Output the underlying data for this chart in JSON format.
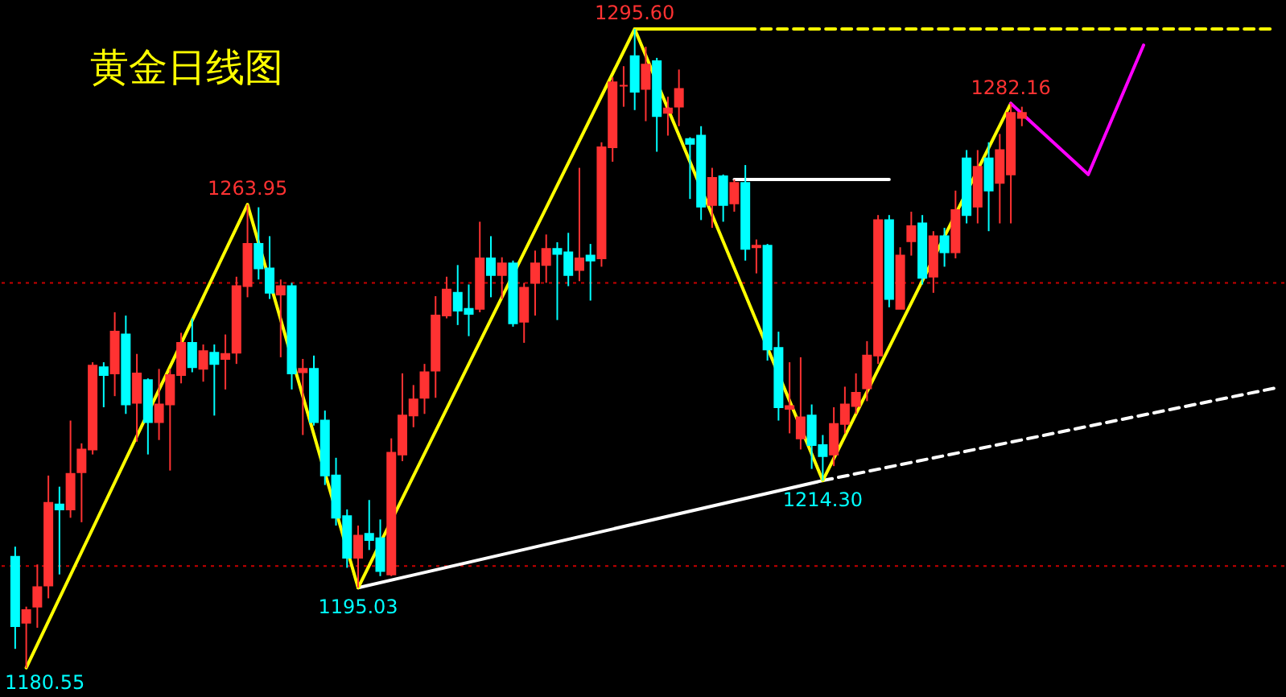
{
  "chart_data": {
    "type": "candlestick",
    "title": "黄金日线图",
    "tick_labels": false,
    "categories": [
      null,
      null,
      null,
      null,
      null,
      null,
      null,
      null,
      null,
      null,
      null,
      null,
      null,
      null,
      null,
      null,
      null,
      null,
      null,
      null,
      null,
      null,
      null,
      null,
      null,
      null,
      null,
      null,
      null,
      null,
      null,
      null,
      null,
      null,
      null,
      null,
      null,
      null,
      null,
      null,
      null,
      null,
      null,
      null,
      null,
      null,
      null,
      null,
      null,
      null,
      null,
      null,
      null,
      null,
      null,
      null,
      null,
      null,
      null,
      null,
      null,
      null,
      null,
      null,
      null,
      null,
      null,
      null,
      null,
      null,
      null,
      null,
      null,
      null,
      null,
      null,
      null,
      null,
      null,
      null,
      null,
      null,
      null,
      null,
      null,
      null,
      null,
      null,
      null,
      null,
      null,
      null,
      null,
      null,
      null,
      null,
      null,
      null,
      null,
      null,
      null,
      null,
      null,
      null,
      null,
      null,
      null,
      null,
      null,
      null,
      null,
      null,
      null,
      null,
      null
    ],
    "ohlc": [
      [
        1200.6,
        1202.4,
        1184.0,
        1188.1
      ],
      [
        1188.7,
        1191.6,
        1180.55,
        1191.0
      ],
      [
        1191.6,
        1199.2,
        1187.8,
        1195.1
      ],
      [
        1195.4,
        1215.2,
        1193.1,
        1210.3
      ],
      [
        1210.0,
        1213.2,
        1197.4,
        1209.1
      ],
      [
        1209.1,
        1225.1,
        1207.6,
        1215.5
      ],
      [
        1215.8,
        1221.0,
        1206.8,
        1219.9
      ],
      [
        1219.9,
        1235.6,
        1219.0,
        1235.0
      ],
      [
        1234.7,
        1235.6,
        1227.5,
        1233.3
      ],
      [
        1233.6,
        1244.6,
        1229.5,
        1241.1
      ],
      [
        1240.6,
        1244.0,
        1226.3,
        1228.0
      ],
      [
        1228.3,
        1237.1,
        1221.3,
        1233.6
      ],
      [
        1232.4,
        1232.7,
        1219.0,
        1224.8
      ],
      [
        1224.8,
        1234.4,
        1221.6,
        1228.0
      ],
      [
        1228.0,
        1234.4,
        1216.1,
        1233.3
      ],
      [
        1233.3,
        1240.9,
        1231.8,
        1239.1
      ],
      [
        1239.1,
        1243.5,
        1233.8,
        1234.7
      ],
      [
        1234.4,
        1238.8,
        1232.1,
        1237.6
      ],
      [
        1237.3,
        1238.8,
        1226.0,
        1235.3
      ],
      [
        1236.2,
        1240.6,
        1230.7,
        1237.1
      ],
      [
        1237.3,
        1251.0,
        1235.3,
        1249.3
      ],
      [
        1249.3,
        1263.95,
        1247.3,
        1256.9
      ],
      [
        1256.9,
        1263.5,
        1250.5,
        1252.5
      ],
      [
        1252.5,
        1258.3,
        1247.0,
        1248.1
      ],
      [
        1247.8,
        1250.5,
        1236.5,
        1249.3
      ],
      [
        1249.3,
        1249.9,
        1230.7,
        1233.6
      ],
      [
        1233.8,
        1236.2,
        1222.5,
        1234.4
      ],
      [
        1234.4,
        1236.8,
        1224.2,
        1224.8
      ],
      [
        1225.1,
        1226.9,
        1213.5,
        1215.2
      ],
      [
        1215.2,
        1218.4,
        1206.2,
        1207.6
      ],
      [
        1207.9,
        1209.1,
        1198.6,
        1200.4
      ],
      [
        1200.4,
        1206.2,
        1195.03,
        1204.4
      ],
      [
        1204.7,
        1210.8,
        1201.8,
        1203.6
      ],
      [
        1203.9,
        1207.3,
        1197.1,
        1198.0
      ],
      [
        1197.4,
        1221.9,
        1197.1,
        1219.3
      ],
      [
        1219.0,
        1233.6,
        1217.8,
        1226.0
      ],
      [
        1226.0,
        1231.5,
        1223.9,
        1228.9
      ],
      [
        1229.2,
        1235.3,
        1226.3,
        1233.8
      ],
      [
        1234.1,
        1247.5,
        1229.2,
        1244.0
      ],
      [
        1244.0,
        1251.0,
        1243.5,
        1248.7
      ],
      [
        1248.1,
        1253.1,
        1242.3,
        1244.9
      ],
      [
        1245.2,
        1249.6,
        1240.3,
        1244.3
      ],
      [
        1245.2,
        1260.9,
        1244.6,
        1254.3
      ],
      [
        1254.3,
        1258.3,
        1247.3,
        1251.3
      ],
      [
        1251.3,
        1254.5,
        1247.0,
        1253.4
      ],
      [
        1253.4,
        1253.9,
        1242.0,
        1242.6
      ],
      [
        1242.9,
        1249.9,
        1239.1,
        1249.0
      ],
      [
        1249.9,
        1255.7,
        1244.0,
        1253.4
      ],
      [
        1253.1,
        1258.6,
        1249.9,
        1256.0
      ],
      [
        1256.0,
        1257.2,
        1243.2,
        1255.1
      ],
      [
        1255.4,
        1258.9,
        1249.3,
        1251.3
      ],
      [
        1252.2,
        1270.6,
        1250.2,
        1254.3
      ],
      [
        1254.8,
        1256.9,
        1246.7,
        1253.9
      ],
      [
        1254.3,
        1275.2,
        1252.8,
        1274.3
      ],
      [
        1274.3,
        1286.9,
        1271.7,
        1286.0
      ],
      [
        1285.4,
        1288.9,
        1281.6,
        1285.4
      ],
      [
        1290.7,
        1295.6,
        1281.0,
        1284.3
      ],
      [
        1284.8,
        1292.4,
        1279.0,
        1289.2
      ],
      [
        1289.8,
        1290.4,
        1273.5,
        1279.9
      ],
      [
        1280.5,
        1283.4,
        1276.4,
        1281.3
      ],
      [
        1281.6,
        1288.3,
        1278.1,
        1284.8
      ],
      [
        1275.8,
        1276.1,
        1265.0,
        1274.9
      ],
      [
        1276.4,
        1278.1,
        1261.2,
        1263.6
      ],
      [
        1263.9,
        1270.6,
        1259.8,
        1268.8
      ],
      [
        1269.1,
        1269.4,
        1260.9,
        1263.9
      ],
      [
        1264.2,
        1268.5,
        1262.7,
        1267.9
      ],
      [
        1267.9,
        1271.1,
        1253.9,
        1256.0
      ],
      [
        1256.3,
        1257.7,
        1251.6,
        1256.6
      ],
      [
        1256.6,
        1256.9,
        1235.9,
        1237.9
      ],
      [
        1238.2,
        1241.1,
        1225.1,
        1227.5
      ],
      [
        1227.2,
        1235.6,
        1222.8,
        1227.7
      ],
      [
        1221.9,
        1236.5,
        1219.9,
        1225.7
      ],
      [
        1226.0,
        1228.0,
        1216.4,
        1220.7
      ],
      [
        1220.7,
        1222.5,
        1214.3,
        1218.7
      ],
      [
        1219.0,
        1227.5,
        1216.9,
        1224.5
      ],
      [
        1224.5,
        1231.2,
        1222.8,
        1228.0
      ],
      [
        1227.7,
        1233.6,
        1226.3,
        1230.1
      ],
      [
        1230.9,
        1239.4,
        1228.6,
        1236.8
      ],
      [
        1236.8,
        1262.1,
        1235.3,
        1261.2
      ],
      [
        1261.2,
        1262.1,
        1245.5,
        1247.0
      ],
      [
        1245.2,
        1256.3,
        1245.2,
        1254.8
      ],
      [
        1257.4,
        1262.7,
        1254.8,
        1260.1
      ],
      [
        1260.6,
        1262.1,
        1249.6,
        1250.8
      ],
      [
        1251.0,
        1259.2,
        1248.1,
        1258.3
      ],
      [
        1258.3,
        1259.8,
        1252.8,
        1255.4
      ],
      [
        1255.4,
        1266.5,
        1254.3,
        1263.0
      ],
      [
        1272.3,
        1273.8,
        1260.6,
        1262.1
      ],
      [
        1263.6,
        1273.8,
        1260.6,
        1270.8
      ],
      [
        1272.3,
        1275.2,
        1259.2,
        1266.5
      ],
      [
        1267.9,
        1276.7,
        1260.6,
        1273.8
      ],
      [
        1269.4,
        1282.16,
        1260.6,
        1280.5
      ],
      [
        1279.6,
        1281.6,
        1278.1,
        1280.5
      ],
      null,
      null,
      null,
      null,
      null,
      null,
      null,
      null,
      null,
      null,
      null,
      null,
      null,
      null,
      null,
      null,
      null,
      null,
      null,
      null,
      null,
      null,
      null
    ],
    "colors": [
      "#00ffff",
      "#ff3232",
      "#ff3232",
      "#ff3232",
      "#00ffff",
      "#ff3232",
      "#ff3232",
      "#ff3232",
      "#00ffff",
      "#ff3232",
      "#00ffff",
      "#ff3232",
      "#00ffff",
      "#ff3232",
      "#ff3232",
      "#ff3232",
      "#00ffff",
      "#ff3232",
      "#00ffff",
      "#ff3232",
      "#ff3232",
      "#ff3232",
      "#00ffff",
      "#00ffff",
      "#ff3232",
      "#00ffff",
      "#ff3232",
      "#00ffff",
      "#00ffff",
      "#00ffff",
      "#00ffff",
      "#ff3232",
      "#00ffff",
      "#00ffff",
      "#ff3232",
      "#ff3232",
      "#ff3232",
      "#ff3232",
      "#ff3232",
      "#ff3232",
      "#00ffff",
      "#00ffff",
      "#ff3232",
      "#00ffff",
      "#ff3232",
      "#00ffff",
      "#ff3232",
      "#ff3232",
      "#ff3232",
      "#00ffff",
      "#00ffff",
      "#ff3232",
      "#00ffff",
      "#ff3232",
      "#ff3232",
      "#ff3232",
      "#00ffff",
      "#ff3232",
      "#00ffff",
      "#ff3232",
      "#ff3232",
      "#00ffff",
      "#00ffff",
      "#ff3232",
      "#00ffff",
      "#ff3232",
      "#00ffff",
      "#ff3232",
      "#00ffff",
      "#00ffff",
      "#ff3232",
      "#ff3232",
      "#00ffff",
      "#00ffff",
      "#ff3232",
      "#ff3232",
      "#ff3232",
      "#ff3232",
      "#ff3232",
      "#00ffff",
      "#ff3232",
      "#ff3232",
      "#00ffff",
      "#ff3232",
      "#00ffff",
      "#ff3232",
      "#00ffff",
      "#ff3232",
      "#00ffff",
      "#ff3232",
      "#ff3232",
      "#ff3232",
      null,
      null,
      null,
      null,
      null,
      null,
      null,
      null,
      null,
      null,
      null,
      null,
      null,
      null,
      null,
      null,
      null,
      null,
      null,
      null,
      null,
      null,
      null
    ],
    "series": [
      {
        "type": "line",
        "color": "#ffffff",
        "line_style": "solid",
        "values": [
          null,
          null,
          null,
          null,
          null,
          null,
          null,
          null,
          null,
          null,
          null,
          null,
          null,
          null,
          null,
          null,
          null,
          null,
          null,
          null,
          null,
          null,
          null,
          null,
          null,
          null,
          null,
          null,
          null,
          null,
          null,
          1195.0,
          null,
          null,
          null,
          null,
          null,
          null,
          null,
          null,
          null,
          null,
          null,
          null,
          null,
          null,
          null,
          null,
          null,
          null,
          null,
          null,
          null,
          null,
          null,
          null,
          null,
          null,
          null,
          null,
          null,
          null,
          null,
          null,
          null,
          null,
          null,
          null,
          null,
          null,
          null,
          null,
          null,
          1214.3,
          null,
          null,
          null,
          null,
          null,
          null,
          null,
          null,
          null,
          null,
          null,
          null,
          null,
          null,
          null,
          null,
          null,
          null,
          null,
          null,
          null,
          null,
          null,
          null,
          null,
          null,
          null,
          null,
          null,
          null,
          null,
          null,
          null,
          null,
          null,
          null,
          null,
          null,
          null,
          null,
          null
        ]
      },
      {
        "type": "line",
        "color": "#ffffff",
        "line_style": "dashed",
        "values": [
          null,
          null,
          null,
          null,
          null,
          null,
          null,
          null,
          null,
          null,
          null,
          null,
          null,
          null,
          null,
          null,
          null,
          null,
          null,
          null,
          null,
          null,
          null,
          null,
          null,
          null,
          null,
          null,
          null,
          null,
          null,
          null,
          null,
          null,
          null,
          null,
          null,
          null,
          null,
          null,
          null,
          null,
          null,
          null,
          null,
          null,
          null,
          null,
          null,
          null,
          null,
          null,
          null,
          null,
          null,
          null,
          null,
          null,
          null,
          null,
          null,
          null,
          null,
          null,
          null,
          null,
          null,
          null,
          null,
          null,
          null,
          null,
          null,
          1214.3,
          null,
          null,
          null,
          null,
          null,
          null,
          null,
          null,
          null,
          null,
          null,
          null,
          null,
          null,
          null,
          null,
          null,
          null,
          null,
          null,
          null,
          null,
          null,
          null,
          null,
          null,
          null,
          null,
          null,
          null,
          null,
          null,
          null,
          null,
          null,
          null,
          null,
          null,
          null,
          null,
          1231.0
        ]
      },
      {
        "type": "line",
        "color": "#ffffff",
        "line_style": "solid",
        "values": [
          null,
          null,
          null,
          null,
          null,
          null,
          null,
          null,
          null,
          null,
          null,
          null,
          null,
          null,
          null,
          null,
          null,
          null,
          null,
          null,
          null,
          null,
          null,
          null,
          null,
          null,
          null,
          null,
          null,
          null,
          null,
          null,
          null,
          null,
          null,
          null,
          null,
          null,
          null,
          null,
          null,
          null,
          null,
          null,
          null,
          null,
          null,
          null,
          null,
          null,
          null,
          null,
          null,
          null,
          null,
          null,
          null,
          null,
          null,
          null,
          null,
          null,
          null,
          null,
          null,
          1268.5,
          null,
          null,
          null,
          null,
          null,
          null,
          null,
          null,
          null,
          null,
          null,
          null,
          null,
          1268.5,
          null,
          null,
          null,
          null,
          null,
          null,
          null,
          null,
          null,
          null,
          null,
          null,
          null,
          null,
          null,
          null,
          null,
          null,
          null,
          null,
          null,
          null,
          null,
          null,
          null,
          null,
          null,
          null,
          null,
          null,
          null,
          null,
          null,
          null,
          null
        ]
      },
      {
        "type": "line",
        "color": "#ffff00",
        "line_style": "solid",
        "values": [
          null,
          null,
          null,
          null,
          null,
          null,
          null,
          null,
          null,
          null,
          null,
          null,
          null,
          null,
          null,
          null,
          null,
          null,
          null,
          null,
          null,
          null,
          null,
          null,
          null,
          null,
          null,
          null,
          null,
          null,
          null,
          null,
          null,
          null,
          null,
          null,
          null,
          null,
          null,
          null,
          null,
          null,
          null,
          null,
          null,
          null,
          null,
          null,
          null,
          null,
          null,
          null,
          null,
          null,
          null,
          null,
          1295.6,
          null,
          null,
          null,
          null,
          null,
          null,
          null,
          null,
          null,
          1295.6,
          null,
          null,
          null,
          null,
          null,
          null,
          null,
          null,
          null,
          null,
          null,
          null,
          null,
          null,
          null,
          null,
          null,
          null,
          null,
          null,
          null,
          null,
          null,
          null,
          null,
          null,
          null,
          null,
          null,
          null,
          null,
          null,
          null,
          null,
          null,
          null,
          null,
          null,
          null,
          null,
          null,
          null,
          null,
          null,
          null,
          null,
          null,
          null
        ]
      },
      {
        "type": "line",
        "color": "#ffff00",
        "line_style": "dashed",
        "values": [
          null,
          null,
          null,
          null,
          null,
          null,
          null,
          null,
          null,
          null,
          null,
          null,
          null,
          null,
          null,
          null,
          null,
          null,
          null,
          null,
          null,
          null,
          null,
          null,
          null,
          null,
          null,
          null,
          null,
          null,
          null,
          null,
          null,
          null,
          null,
          null,
          null,
          null,
          null,
          null,
          null,
          null,
          null,
          null,
          null,
          null,
          null,
          null,
          null,
          null,
          null,
          null,
          null,
          null,
          null,
          null,
          null,
          null,
          null,
          null,
          null,
          null,
          null,
          null,
          null,
          null,
          1295.6,
          null,
          null,
          null,
          null,
          null,
          null,
          null,
          null,
          null,
          null,
          null,
          null,
          null,
          null,
          null,
          null,
          null,
          null,
          null,
          null,
          null,
          null,
          null,
          null,
          null,
          null,
          null,
          null,
          null,
          null,
          null,
          null,
          null,
          null,
          null,
          null,
          null,
          null,
          null,
          null,
          null,
          null,
          null,
          null,
          null,
          null,
          null,
          1295.6
        ]
      },
      {
        "type": "line",
        "color": "#ffff00",
        "line_style": "solid",
        "values": [
          null,
          1180.6,
          null,
          null,
          null,
          null,
          null,
          null,
          null,
          null,
          null,
          null,
          null,
          null,
          null,
          null,
          null,
          null,
          null,
          null,
          null,
          1264.0,
          null,
          null,
          null,
          null,
          null,
          null,
          null,
          null,
          null,
          1195.0,
          null,
          null,
          null,
          null,
          null,
          null,
          null,
          null,
          null,
          null,
          null,
          null,
          null,
          null,
          null,
          null,
          null,
          null,
          null,
          null,
          null,
          null,
          null,
          null,
          1295.6,
          null,
          null,
          null,
          null,
          null,
          null,
          null,
          null,
          null,
          null,
          null,
          null,
          null,
          null,
          null,
          null,
          1214.3,
          null,
          null,
          null,
          null,
          null,
          null,
          null,
          null,
          null,
          null,
          null,
          null,
          null,
          null,
          null,
          null,
          1282.2,
          null,
          null,
          null,
          null,
          null,
          null,
          null,
          null,
          null,
          null,
          null,
          null,
          null,
          null,
          null,
          null,
          null,
          null,
          null,
          null,
          null,
          null,
          null,
          null
        ]
      },
      {
        "type": "line",
        "color": "#ff00ff",
        "line_style": "solid",
        "values": [
          null,
          null,
          null,
          null,
          null,
          null,
          null,
          null,
          null,
          null,
          null,
          null,
          null,
          null,
          null,
          null,
          null,
          null,
          null,
          null,
          null,
          null,
          null,
          null,
          null,
          null,
          null,
          null,
          null,
          null,
          null,
          null,
          null,
          null,
          null,
          null,
          null,
          null,
          null,
          null,
          null,
          null,
          null,
          null,
          null,
          null,
          null,
          null,
          null,
          null,
          null,
          null,
          null,
          null,
          null,
          null,
          null,
          null,
          null,
          null,
          null,
          null,
          null,
          null,
          null,
          null,
          null,
          null,
          null,
          null,
          null,
          null,
          null,
          null,
          null,
          null,
          null,
          null,
          null,
          null,
          null,
          null,
          null,
          null,
          null,
          null,
          null,
          null,
          null,
          null,
          1282.2,
          null,
          null,
          null,
          null,
          null,
          null,
          1269.4,
          null,
          null,
          null,
          null,
          1292.7,
          null,
          null,
          null,
          null,
          null,
          null,
          null,
          null,
          null,
          null,
          null,
          null
        ]
      }
    ],
    "ref_lines": [
      {
        "axis": "y",
        "value": 1249.9,
        "color": "#c80000",
        "line_style": "dotted"
      },
      {
        "axis": "y",
        "value": 1198.9,
        "color": "#c80000",
        "line_style": "dotted"
      }
    ],
    "annotations": [
      {
        "text": "1295.60",
        "y": 1295.6
      },
      {
        "text": "1263.95",
        "y": 1263.95
      },
      {
        "text": "1282.16",
        "y": 1282.16
      },
      "1180.55",
      {
        "text": "1195.03",
        "y": 1195.03
      },
      {
        "text": "1214.30",
        "y": 1214.3
      }
    ]
  }
}
